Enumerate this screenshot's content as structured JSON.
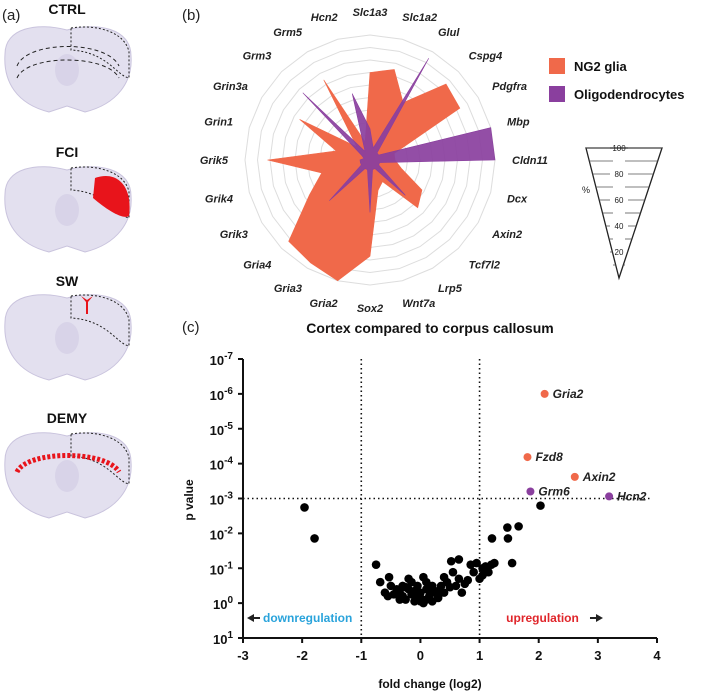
{
  "panel_a": {
    "label": "(a)",
    "conditions": [
      "CTRL",
      "FCI",
      "SW",
      "DEMY"
    ]
  },
  "chart_data": [
    {
      "panel": "(b)",
      "type": "radar",
      "categories": [
        "Slc1a3",
        "Slc1a2",
        "Glul",
        "Cspg4",
        "Pdgfra",
        "Mbp",
        "Cldn11",
        "Dcx",
        "Axin2",
        "Tcf7l2",
        "Lrp5",
        "Wnt7a",
        "Sox2",
        "Gria2",
        "Gria3",
        "Gria4",
        "Grik3",
        "Grik4",
        "Grik5",
        "Grin1",
        "Grin3a",
        "Grm3",
        "Grm5",
        "Hcn2"
      ],
      "series": [
        {
          "name": "NG2 glia",
          "color": "#F0694A",
          "values": [
            70,
            75,
            53,
            86,
            83,
            20,
            20,
            26,
            48,
            54,
            20,
            25,
            77,
            100,
            95,
            92,
            56,
            40,
            82,
            28,
            65,
            15,
            74,
            15
          ]
        },
        {
          "name": "Oligodendrocytes",
          "color": "#8A3F9E",
          "values": [
            25,
            10,
            94,
            8,
            8,
            100,
            100,
            8,
            8,
            40,
            8,
            8,
            42,
            8,
            8,
            46,
            8,
            8,
            8,
            5,
            8,
            76,
            8,
            55
          ]
        }
      ],
      "range": [
        0,
        100
      ],
      "scale": {
        "unit": "%",
        "ticks": [
          "100",
          "80",
          "60",
          "40",
          "20"
        ]
      },
      "grid": true,
      "legend": "right"
    },
    {
      "panel": "(c)",
      "type": "scatter",
      "title": "Cortex compared to corpus callosum",
      "xlabel": "fold change (log2)",
      "ylabel": "p value",
      "xlim": [
        -3,
        4
      ],
      "xticks": [
        "-3",
        "-2",
        "-1",
        "0",
        "1",
        "2",
        "3",
        "4"
      ],
      "ylim": [
        10,
        1e-07
      ],
      "yscale": "log",
      "yticks": [
        {
          "base": "10",
          "exp": "-7"
        },
        {
          "base": "10",
          "exp": "-6"
        },
        {
          "base": "10",
          "exp": "-5"
        },
        {
          "base": "10",
          "exp": "-4"
        },
        {
          "base": "10",
          "exp": "-3"
        },
        {
          "base": "10",
          "exp": "-2"
        },
        {
          "base": "10",
          "exp": "-1"
        },
        {
          "base": "10",
          "exp": "0"
        },
        {
          "base": "10",
          "exp": "1"
        }
      ],
      "thresholds": {
        "fold_change": [
          -1,
          1
        ],
        "p": 0.001
      },
      "annotations": {
        "down": "downregulation",
        "up": "upregulation",
        "down_color": "#29A3DB",
        "up_color": "#E0262B"
      },
      "highlighted": [
        {
          "gene": "Gria2",
          "x": 2.1,
          "p": 1e-06,
          "color": "#F0694A"
        },
        {
          "gene": "Fzd8",
          "x": 1.81,
          "p": 6.5e-05,
          "color": "#F0694A"
        },
        {
          "gene": "Axin2",
          "x": 2.61,
          "p": 0.00024,
          "color": "#F0694A"
        },
        {
          "gene": "Grm6",
          "x": 1.86,
          "p": 0.00063,
          "color": "#8A3F9E"
        },
        {
          "gene": "Hcn2",
          "x": 3.19,
          "p": 0.00087,
          "color": "#8A3F9E"
        }
      ],
      "points": [
        [
          -1.96,
          0.0018
        ],
        [
          -1.79,
          0.014
        ],
        [
          2.03,
          0.0016
        ],
        [
          1.47,
          0.0068
        ],
        [
          1.66,
          0.0063
        ],
        [
          1.48,
          0.014
        ],
        [
          1.21,
          0.014
        ],
        [
          1.55,
          0.071
        ],
        [
          -0.75,
          0.079
        ],
        [
          -0.68,
          0.25
        ],
        [
          -0.53,
          0.18
        ],
        [
          -0.5,
          0.32
        ],
        [
          -0.6,
          0.5
        ],
        [
          -0.55,
          0.63
        ],
        [
          -0.4,
          0.4
        ],
        [
          -0.35,
          0.5
        ],
        [
          -0.3,
          0.63
        ],
        [
          -0.25,
          0.79
        ],
        [
          -0.2,
          0.2
        ],
        [
          -0.2,
          0.4
        ],
        [
          -0.15,
          0.56
        ],
        [
          -0.1,
          0.89
        ],
        [
          -0.1,
          0.45
        ],
        [
          -0.05,
          0.32
        ],
        [
          0,
          0.71
        ],
        [
          0,
          0.5
        ],
        [
          0.05,
          0.18
        ],
        [
          0.05,
          1.0
        ],
        [
          0.1,
          0.25
        ],
        [
          0.1,
          0.4
        ],
        [
          0.15,
          0.63
        ],
        [
          0.2,
          0.32
        ],
        [
          0.25,
          0.5
        ],
        [
          0.3,
          0.71
        ],
        [
          0.35,
          0.32
        ],
        [
          0.4,
          0.18
        ],
        [
          0.4,
          0.5
        ],
        [
          0.45,
          0.25
        ],
        [
          0.5,
          0.35
        ],
        [
          0.52,
          0.063
        ],
        [
          0.55,
          0.13
        ],
        [
          0.6,
          0.32
        ],
        [
          0.65,
          0.056
        ],
        [
          0.65,
          0.2
        ],
        [
          0.7,
          0.5
        ],
        [
          0.75,
          0.28
        ],
        [
          0.8,
          0.22
        ],
        [
          0.85,
          0.079
        ],
        [
          0.9,
          0.13
        ],
        [
          0.95,
          0.071
        ],
        [
          1.0,
          0.2
        ],
        [
          1.05,
          0.16
        ],
        [
          1.05,
          0.1
        ],
        [
          1.1,
          0.089
        ],
        [
          1.15,
          0.13
        ],
        [
          1.2,
          0.079
        ],
        [
          1.25,
          0.071
        ],
        [
          -0.3,
          0.32
        ],
        [
          -0.15,
          0.25
        ],
        [
          0.1,
          0.79
        ],
        [
          0.2,
          0.89
        ],
        [
          -0.35,
          0.79
        ],
        [
          -0.05,
          0.63
        ],
        [
          -0.45,
          0.56
        ],
        [
          0.3,
          0.45
        ],
        [
          -0.25,
          0.35
        ],
        [
          0.0,
          0.89
        ],
        [
          0.15,
          0.45
        ]
      ]
    }
  ]
}
